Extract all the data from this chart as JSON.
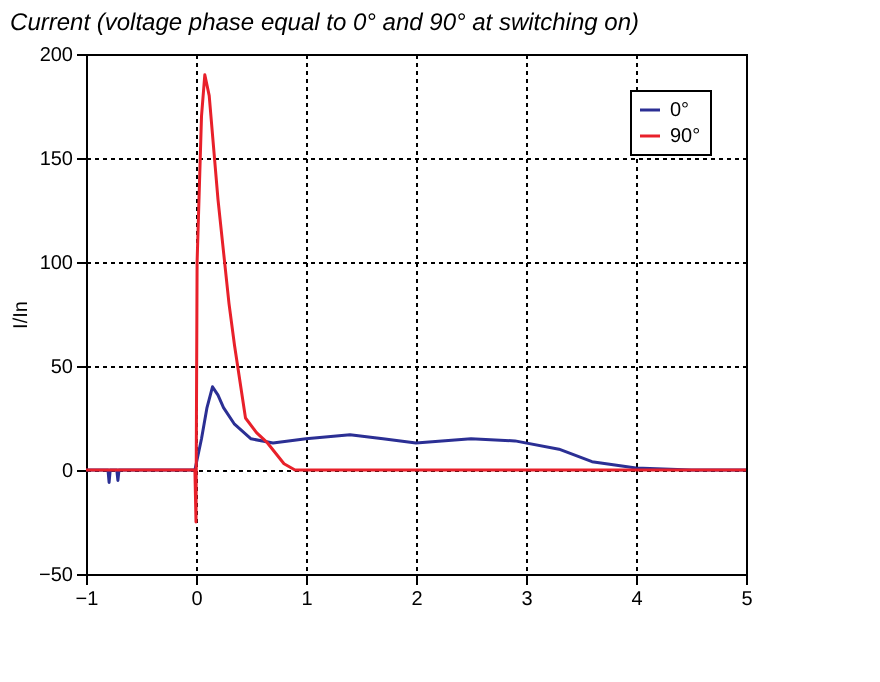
{
  "chart_data": {
    "type": "line",
    "title": "Current (voltage phase equal to 0° and 90° at switching on)",
    "ylabel": "I/In",
    "xlim": [
      -1,
      5
    ],
    "xticks": [
      -1,
      0,
      1,
      2,
      3,
      4,
      5
    ],
    "ylim": [
      -50,
      200
    ],
    "yticks": [
      -50,
      0,
      50,
      100,
      150,
      200
    ],
    "grid": true,
    "legend": "top right",
    "line_style": "solid",
    "marker": "none",
    "series": [
      {
        "name": "0°",
        "color": "#2b2f94",
        "x": [
          -1,
          -0.8,
          -0.79,
          -0.78,
          -0.72,
          -0.71,
          -0.7,
          -0.01,
          0.05,
          0.1,
          0.15,
          0.2,
          0.25,
          0.35,
          0.5,
          0.7,
          1.0,
          1.4,
          1.7,
          2.0,
          2.5,
          2.9,
          3.3,
          3.6,
          4.0,
          4.5,
          5
        ],
        "values": [
          0,
          0,
          -6,
          0,
          0,
          -5,
          0,
          0,
          15,
          30,
          40,
          36,
          30,
          22,
          15,
          13,
          15,
          17,
          15,
          13,
          15,
          14,
          10,
          4,
          1,
          0,
          0
        ]
      },
      {
        "name": "90°",
        "color": "#e8202a",
        "x": [
          -1,
          -0.01,
          0,
          0.01,
          0.05,
          0.08,
          0.12,
          0.2,
          0.3,
          0.35,
          0.45,
          0.55,
          0.65,
          0.8,
          0.9,
          5
        ],
        "values": [
          0,
          0,
          -25,
          100,
          170,
          190,
          180,
          130,
          80,
          60,
          25,
          18,
          13,
          3,
          0,
          0
        ]
      }
    ]
  }
}
